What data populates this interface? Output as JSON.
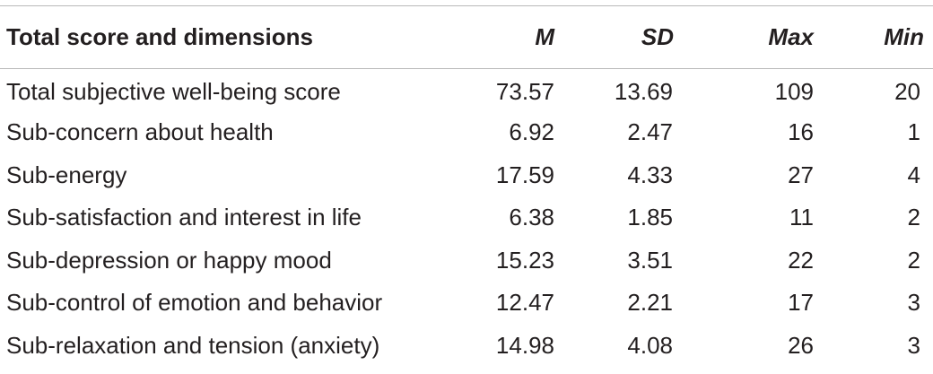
{
  "table": {
    "headers": {
      "label": "Total score and dimensions",
      "m": "M",
      "sd": "SD",
      "max": "Max",
      "min": "Min"
    },
    "rows": [
      {
        "label": "Total subjective well-being score",
        "m": "73.57",
        "sd": "13.69",
        "max": "109",
        "min": "20"
      },
      {
        "label": "Sub-concern about health",
        "m": "6.92",
        "sd": "2.47",
        "max": "16",
        "min": "1"
      },
      {
        "label": "Sub-energy",
        "m": "17.59",
        "sd": "4.33",
        "max": "27",
        "min": "4"
      },
      {
        "label": "Sub-satisfaction and interest in life",
        "m": "6.38",
        "sd": "1.85",
        "max": "11",
        "min": "2"
      },
      {
        "label": "Sub-depression or happy mood",
        "m": "15.23",
        "sd": "3.51",
        "max": "22",
        "min": "2"
      },
      {
        "label": "Sub-control of emotion and behavior",
        "m": "12.47",
        "sd": "2.21",
        "max": "17",
        "min": "3"
      },
      {
        "label": "Sub-relaxation and tension (anxiety)",
        "m": "14.98",
        "sd": "4.08",
        "max": "26",
        "min": "3"
      }
    ]
  }
}
